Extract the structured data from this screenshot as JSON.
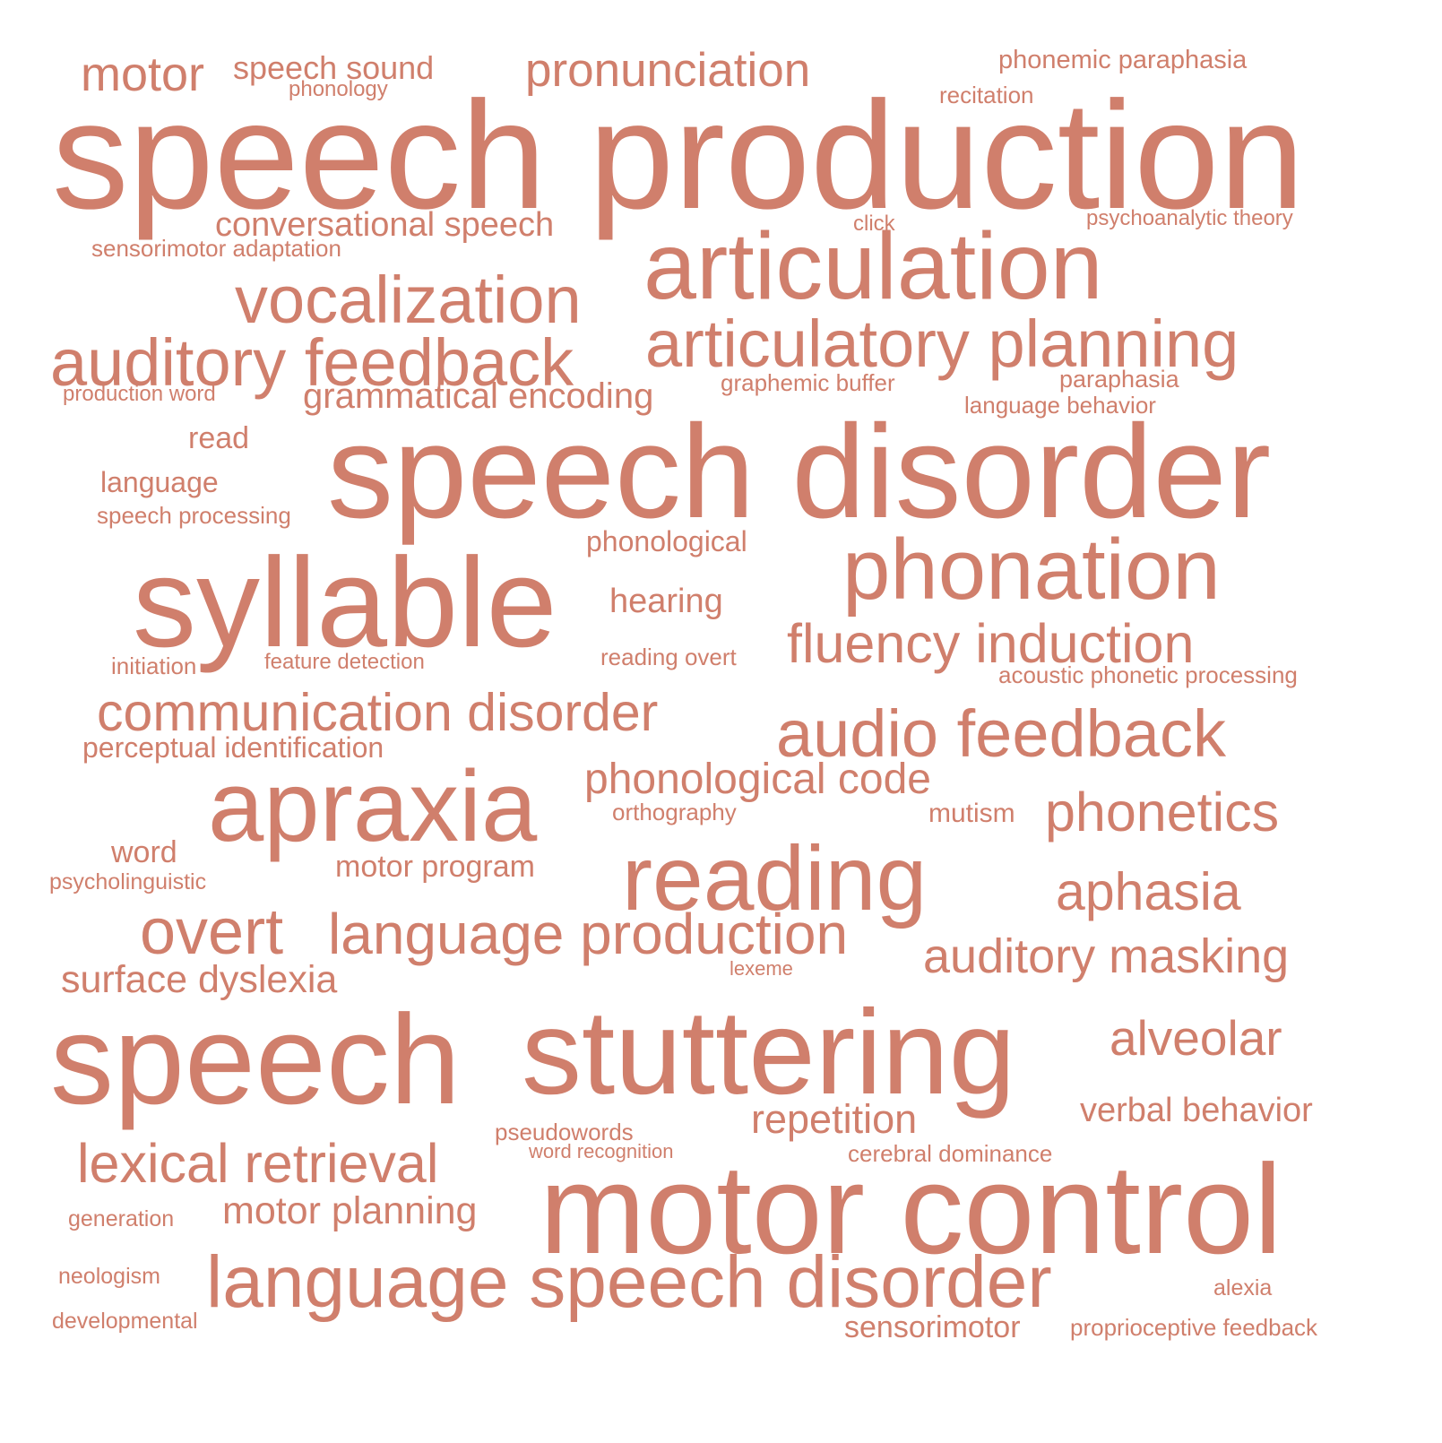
{
  "word_color": "#d07f6c",
  "words": [
    "speech production",
    "speech disorder",
    "motor control",
    "syllable",
    "stuttering",
    "speech",
    "articulation",
    "apraxia",
    "reading",
    "phonation",
    "language speech disorder",
    "articulatory planning",
    "auditory feedback",
    "vocalization",
    "audio feedback",
    "pronunciation",
    "overt",
    "language production",
    "communication disorder",
    "fluency induction",
    "phonetics",
    "lexical retrieval",
    "aphasia",
    "alveolar",
    "motor",
    "auditory masking",
    "phonological code",
    "grammatical encoding",
    "surface dyslexia",
    "repetition",
    "motor planning",
    "conversational speech",
    "verbal behavior",
    "hearing",
    "speech sound",
    "motor program",
    "sensorimotor",
    "word",
    "read",
    "phonemic paraphasia",
    "language",
    "phonological",
    "mutism",
    "perceptual identification",
    "graphemic buffer",
    "paraphasia",
    "language behavior",
    "acoustic phonetic processing",
    "sensorimotor adaptation",
    "psychoanalytic theory",
    "speech processing",
    "recitation",
    "pseudowords",
    "cerebral dominance",
    "proprioceptive feedback",
    "reading overt",
    "orthography",
    "initiation",
    "feature detection",
    "production word",
    "phonology",
    "psycholinguistic",
    "generation",
    "neologism",
    "developmental",
    "alexia",
    "word recognition",
    "lexeme",
    "click"
  ]
}
